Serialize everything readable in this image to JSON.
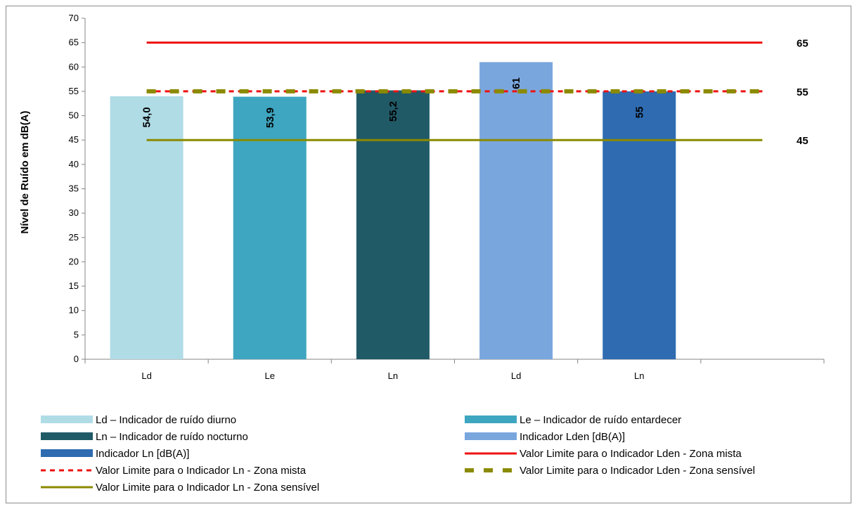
{
  "chart_data": {
    "type": "bar",
    "categories": [
      "Ld",
      "Le",
      "Ln",
      "Ld",
      "Ln"
    ],
    "ylabel": "Nível de Ruído em dB(A)",
    "ylim": [
      0,
      70
    ],
    "yticks": [
      0,
      5,
      10,
      15,
      20,
      25,
      30,
      35,
      40,
      45,
      50,
      55,
      60,
      65,
      70
    ],
    "ytick_labels": [
      "0",
      "5",
      "10",
      "15",
      "20",
      "25",
      "30",
      "35",
      "40",
      "45",
      "50",
      "55",
      "60",
      "65",
      "70"
    ],
    "grid": false,
    "legend_position": "bottom",
    "bars": [
      {
        "category": "Ld",
        "value": 54.0,
        "label": "54,0",
        "series": "Ld – Indicador de ruído diurno",
        "color": "#b0dce6"
      },
      {
        "category": "Le",
        "value": 53.9,
        "label": "53,9",
        "series": "Le – Indicador de ruído entardecer",
        "color": "#3ea6c0"
      },
      {
        "category": "Ln",
        "value": 55.2,
        "label": "55,2",
        "series": "Ln – Indicador de ruído nocturno",
        "color": "#215a67"
      },
      {
        "category": "Ld",
        "value": 61,
        "label": "61",
        "series": "Indicador Lden [dB(A)]",
        "color": "#7aa6de"
      },
      {
        "category": "Ln",
        "value": 55,
        "label": "55",
        "series": "Indicador Ln [dB(A)]",
        "color": "#2e6bb1"
      }
    ],
    "limit_lines": [
      {
        "name": "Valor Limite para o Indicador Lden - Zona mista",
        "value": 65,
        "label": "65",
        "color": "#ee1111",
        "style": "solid",
        "label_color": "#ee1111"
      },
      {
        "name": "Valor Limite para o Indicador Ln - Zona mista",
        "value": 55,
        "label": "55",
        "color": "#ee1111",
        "style": "dotted",
        "label_color": "#ee1111"
      },
      {
        "name": "Valor Limite para o Indicador Lden - Zona sensível",
        "value": 55,
        "label": "",
        "color": "#8b8a00",
        "style": "dashed",
        "label_color": "#8b8a00"
      },
      {
        "name": "Valor Limite para o Indicador Ln - Zona sensível",
        "value": 45,
        "label": "45",
        "color": "#8b8a00",
        "style": "solid",
        "label_color": "#000000"
      }
    ],
    "legend": [
      {
        "text": "Ld – Indicador de ruído diurno",
        "kind": "bar",
        "color": "#b0dce6"
      },
      {
        "text": "Le – Indicador de ruído entardecer",
        "kind": "bar",
        "color": "#3ea6c0"
      },
      {
        "text": "Ln – Indicador de ruído nocturno",
        "kind": "bar",
        "color": "#215a67"
      },
      {
        "text": "Indicador Lden [dB(A)]",
        "kind": "bar",
        "color": "#7aa6de"
      },
      {
        "text": "Indicador Ln [dB(A)]",
        "kind": "bar",
        "color": "#2e6bb1"
      },
      {
        "text": "Valor Limite para o Indicador Lden - Zona mista",
        "kind": "line-solid",
        "color": "#ee1111"
      },
      {
        "text": "Valor Limite para o Indicador Ln - Zona mista",
        "kind": "line-dotted",
        "color": "#ee1111"
      },
      {
        "text": "Valor Limite para o Indicador Lden - Zona sensível",
        "kind": "line-dashed",
        "color": "#8b8a00"
      },
      {
        "text": "Valor Limite para o Indicador Ln - Zona sensível",
        "kind": "line-solid",
        "color": "#8b8a00"
      }
    ]
  }
}
